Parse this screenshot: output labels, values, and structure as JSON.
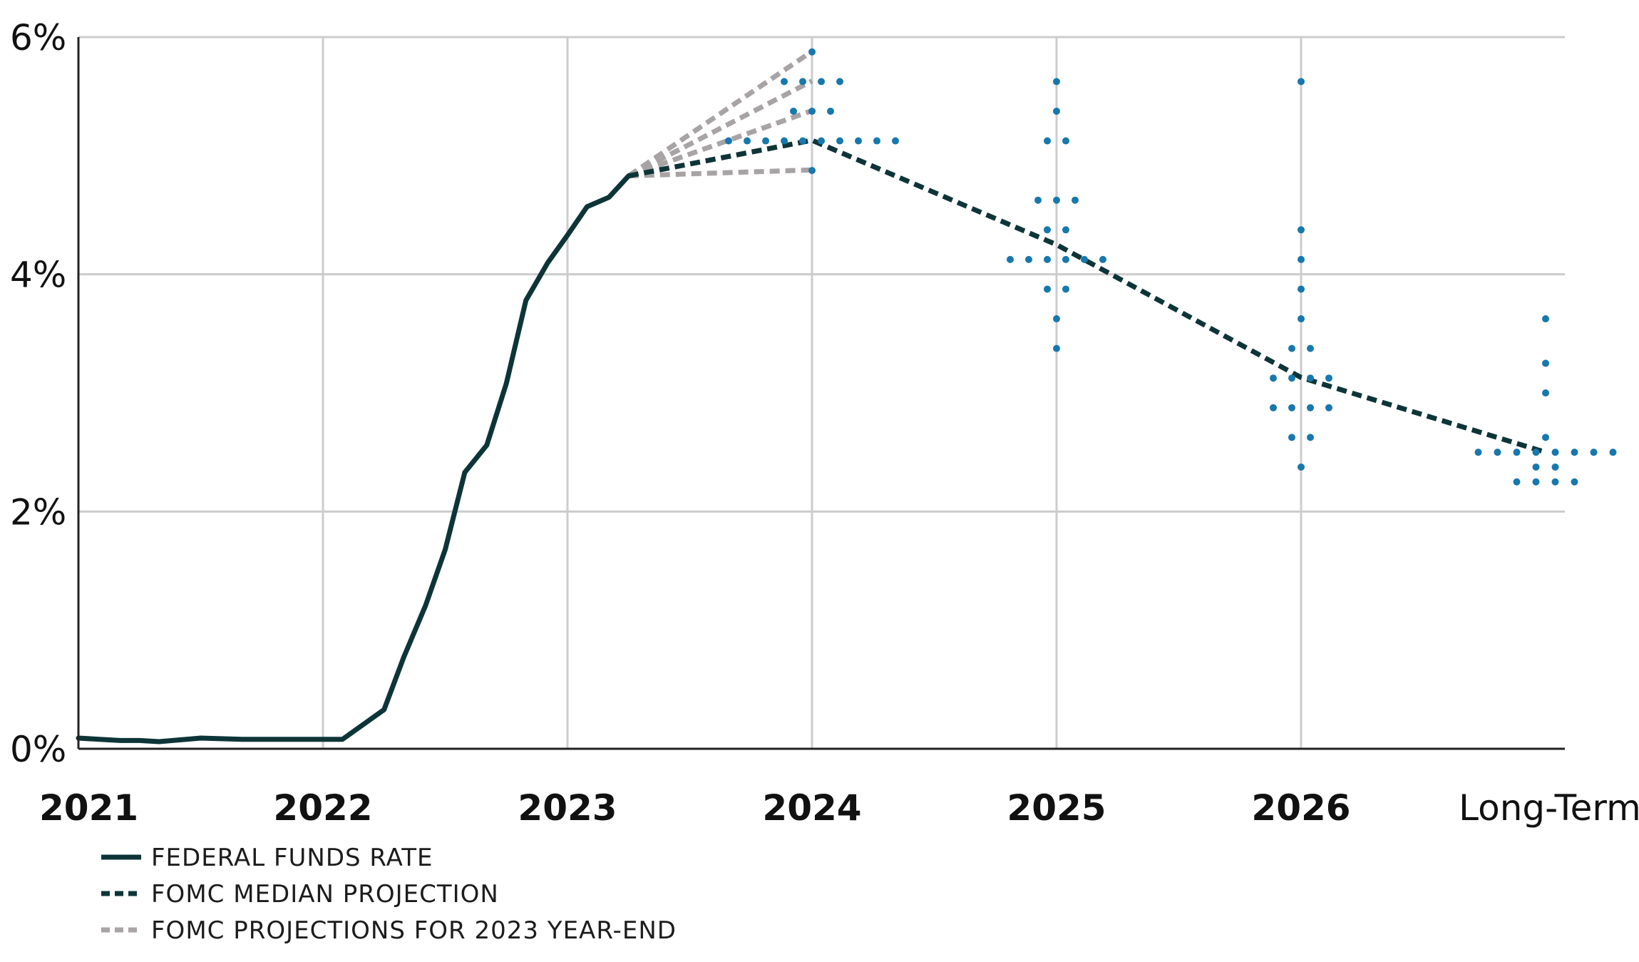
{
  "chart_data": {
    "type": "line",
    "title": "",
    "xlabel": "",
    "ylabel": "",
    "ylim": [
      0,
      6
    ],
    "grid": true,
    "legend_position": "bottom-left",
    "y_ticks": [
      {
        "value": 0,
        "label": "0%"
      },
      {
        "value": 2,
        "label": "2%"
      },
      {
        "value": 4,
        "label": "4%"
      },
      {
        "value": 6,
        "label": "6%"
      }
    ],
    "x_ticks": [
      {
        "pos": 0,
        "label": "2021"
      },
      {
        "pos": 1,
        "label": "2022"
      },
      {
        "pos": 2,
        "label": "2023"
      },
      {
        "pos": 3,
        "label": "2024"
      },
      {
        "pos": 4,
        "label": "2025"
      },
      {
        "pos": 5,
        "label": "2026"
      },
      {
        "pos": 6,
        "label": "Long-Term"
      }
    ],
    "colors": {
      "federal_funds_rate": "#0d3538",
      "median_projection": "#0d3538",
      "year_end_projections": "#a8a3a4",
      "dots": "#1778ad",
      "grid": "#cccccc",
      "axis": "#222222"
    },
    "series": [
      {
        "name": "FEDERAL FUNDS RATE",
        "style": "solid",
        "points": [
          [
            0.0,
            0.09
          ],
          [
            0.17,
            0.07
          ],
          [
            0.25,
            0.07
          ],
          [
            0.33,
            0.06
          ],
          [
            0.5,
            0.09
          ],
          [
            0.67,
            0.08
          ],
          [
            0.83,
            0.08
          ],
          [
            1.0,
            0.08
          ],
          [
            1.08,
            0.08
          ],
          [
            1.25,
            0.33
          ],
          [
            1.33,
            0.77
          ],
          [
            1.42,
            1.21
          ],
          [
            1.5,
            1.68
          ],
          [
            1.58,
            2.33
          ],
          [
            1.67,
            2.56
          ],
          [
            1.75,
            3.08
          ],
          [
            1.83,
            3.78
          ],
          [
            1.92,
            4.1
          ],
          [
            2.0,
            4.33
          ],
          [
            2.08,
            4.57
          ],
          [
            2.17,
            4.65
          ],
          [
            2.25,
            4.83
          ]
        ]
      },
      {
        "name": "FOMC MEDIAN PROJECTION",
        "style": "dashed",
        "points": [
          [
            2.25,
            4.83
          ],
          [
            3.0,
            5.13
          ],
          [
            4.0,
            4.25
          ],
          [
            5.0,
            3.13
          ],
          [
            6.0,
            2.5
          ]
        ]
      },
      {
        "name": "FOMC PROJECTIONS FOR 2023 YEAR-END",
        "style": "dashed",
        "lines": [
          [
            [
              2.25,
              4.83
            ],
            [
              3.0,
              5.88
            ]
          ],
          [
            [
              2.25,
              4.83
            ],
            [
              3.0,
              5.63
            ]
          ],
          [
            [
              2.25,
              4.83
            ],
            [
              3.0,
              5.38
            ]
          ],
          [
            [
              2.25,
              4.83
            ],
            [
              3.0,
              5.13
            ]
          ],
          [
            [
              2.25,
              4.83
            ],
            [
              3.0,
              4.88
            ]
          ]
        ]
      }
    ],
    "dot_plot": [
      {
        "x": 3,
        "levels": [
          {
            "rate": 5.875,
            "count": 1
          },
          {
            "rate": 5.625,
            "count": 4
          },
          {
            "rate": 5.375,
            "count": 3
          },
          {
            "rate": 5.125,
            "count": 10
          },
          {
            "rate": 4.875,
            "count": 1
          }
        ]
      },
      {
        "x": 4,
        "levels": [
          {
            "rate": 5.625,
            "count": 1
          },
          {
            "rate": 5.375,
            "count": 1
          },
          {
            "rate": 5.125,
            "count": 2
          },
          {
            "rate": 4.625,
            "count": 3
          },
          {
            "rate": 4.375,
            "count": 2
          },
          {
            "rate": 4.125,
            "count": 6
          },
          {
            "rate": 3.875,
            "count": 2
          },
          {
            "rate": 3.625,
            "count": 1
          },
          {
            "rate": 3.375,
            "count": 1
          }
        ]
      },
      {
        "x": 5,
        "levels": [
          {
            "rate": 5.625,
            "count": 1
          },
          {
            "rate": 4.375,
            "count": 1
          },
          {
            "rate": 4.125,
            "count": 1
          },
          {
            "rate": 3.875,
            "count": 1
          },
          {
            "rate": 3.625,
            "count": 1
          },
          {
            "rate": 3.375,
            "count": 2
          },
          {
            "rate": 3.125,
            "count": 4
          },
          {
            "rate": 2.875,
            "count": 4
          },
          {
            "rate": 2.625,
            "count": 2
          },
          {
            "rate": 2.375,
            "count": 1
          }
        ]
      },
      {
        "x": 6,
        "levels": [
          {
            "rate": 3.625,
            "count": 1
          },
          {
            "rate": 3.25,
            "count": 1
          },
          {
            "rate": 3.0,
            "count": 1
          },
          {
            "rate": 2.625,
            "count": 1
          },
          {
            "rate": 2.5,
            "count": 8
          },
          {
            "rate": 2.375,
            "count": 2
          },
          {
            "rate": 2.25,
            "count": 4
          }
        ]
      }
    ],
    "legend": [
      {
        "label": "FEDERAL FUNDS RATE",
        "style": "solid"
      },
      {
        "label": "FOMC MEDIAN PROJECTION",
        "style": "dashed"
      },
      {
        "label": "FOMC PROJECTIONS FOR 2023 YEAR-END",
        "style": "dashed-gray"
      }
    ]
  }
}
